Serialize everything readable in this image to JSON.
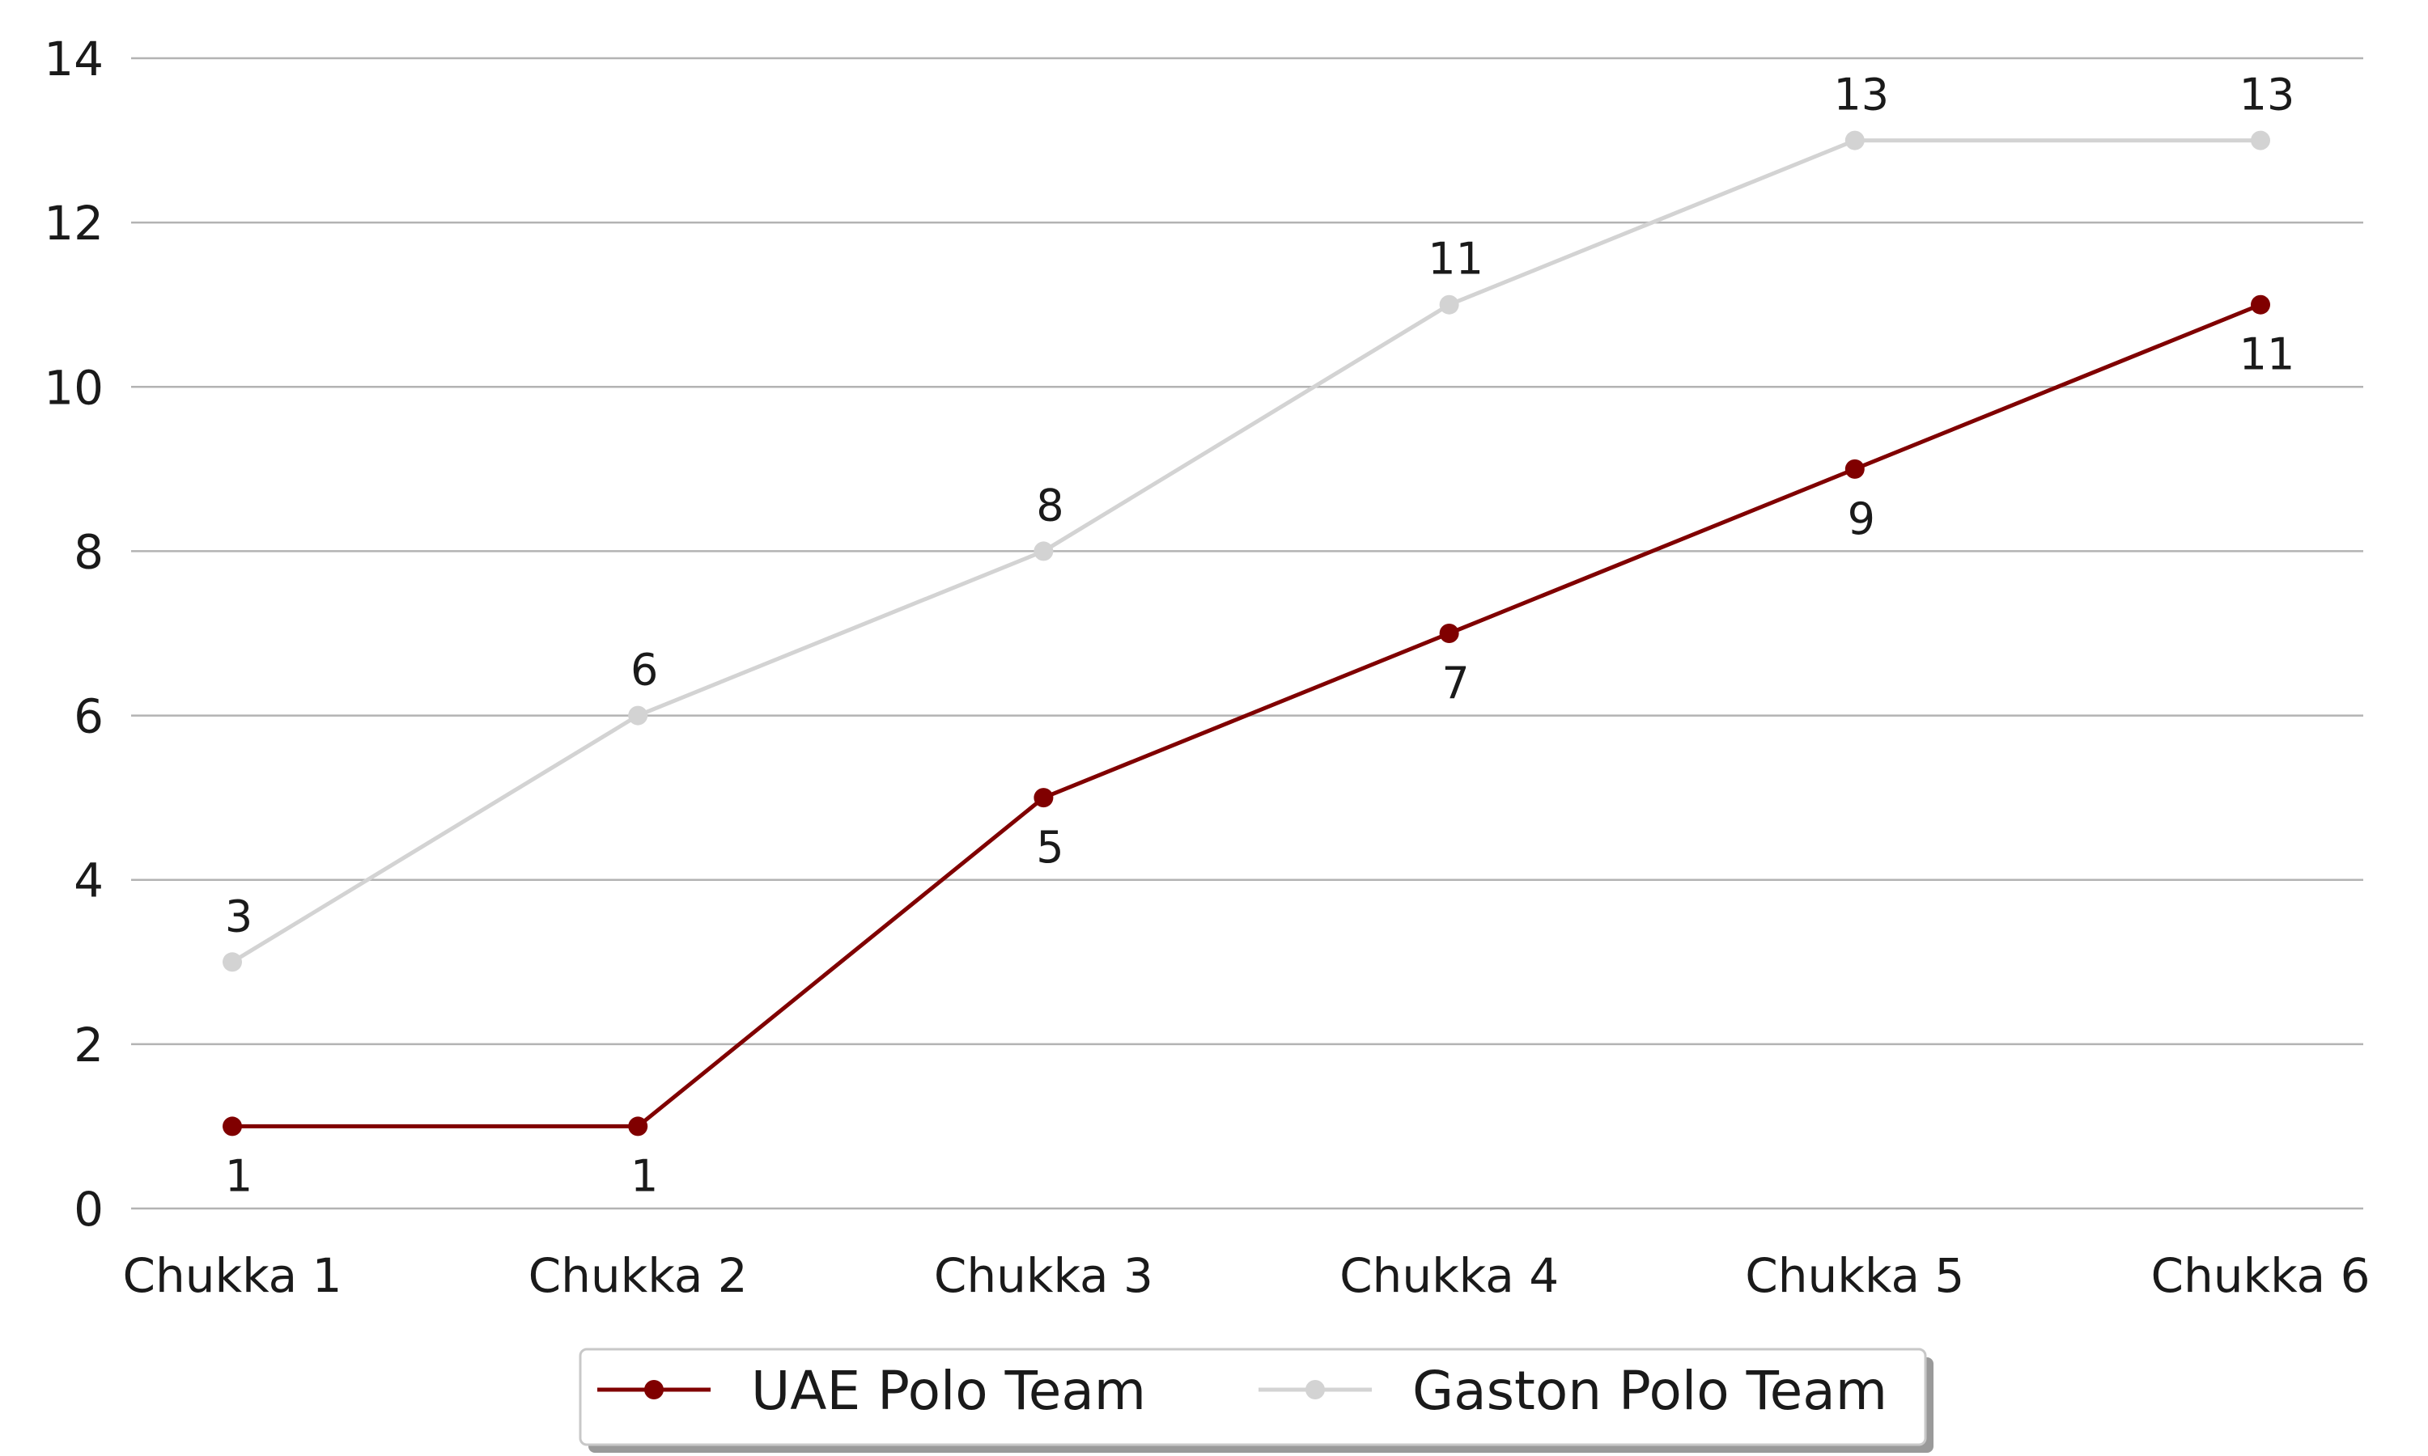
{
  "chart_data": {
    "type": "line",
    "categories": [
      "Chukka 1",
      "Chukka 2",
      "Chukka 3",
      "Chukka 4",
      "Chukka 5",
      "Chukka 6"
    ],
    "series": [
      {
        "name": "UAE Polo Team",
        "values": [
          1,
          1,
          5,
          7,
          9,
          11
        ],
        "color": "#800000",
        "label_position": "below"
      },
      {
        "name": "Gaston Polo Team",
        "values": [
          3,
          6,
          8,
          11,
          13,
          13
        ],
        "color": "#d3d3d3",
        "label_position": "above"
      }
    ],
    "title": "",
    "xlabel": "",
    "ylabel": "",
    "ylim": [
      0,
      14
    ],
    "yticks": [
      0,
      2,
      4,
      6,
      8,
      10,
      12,
      14
    ],
    "grid": "horizontal",
    "legend_position": "bottom-center"
  }
}
